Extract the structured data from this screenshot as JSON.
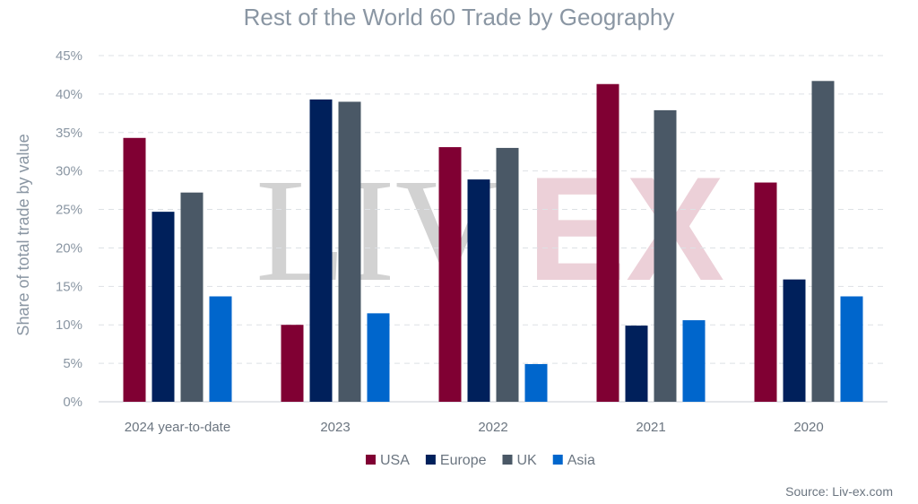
{
  "header": {
    "title": "Rest of the World 60 Trade by Geography"
  },
  "source": "Source: Liv-ex.com",
  "watermark": {
    "left": "LIV",
    "right": "EX"
  },
  "chart_data": {
    "type": "bar",
    "title": "Rest of the World 60 Trade by Geography",
    "xlabel": "",
    "ylabel": "Share of total trade by value",
    "ylim": [
      0,
      45
    ],
    "yticks": [
      0,
      5,
      10,
      15,
      20,
      25,
      30,
      35,
      40,
      45
    ],
    "ytick_suffix": "%",
    "grid": true,
    "legend_position": "bottom",
    "categories": [
      "2024 year-to-date",
      "2023",
      "2022",
      "2021",
      "2020"
    ],
    "series": [
      {
        "name": "USA",
        "color": "#800033",
        "values": [
          34.3,
          10.0,
          33.1,
          41.3,
          28.5
        ]
      },
      {
        "name": "Europe",
        "color": "#00205b",
        "values": [
          24.7,
          39.3,
          28.9,
          9.9,
          15.9
        ]
      },
      {
        "name": "UK",
        "color": "#4a5866",
        "values": [
          27.2,
          39.0,
          33.0,
          37.9,
          41.7
        ]
      },
      {
        "name": "Asia",
        "color": "#0066cc",
        "values": [
          13.7,
          11.5,
          4.9,
          10.6,
          13.7
        ]
      }
    ]
  }
}
